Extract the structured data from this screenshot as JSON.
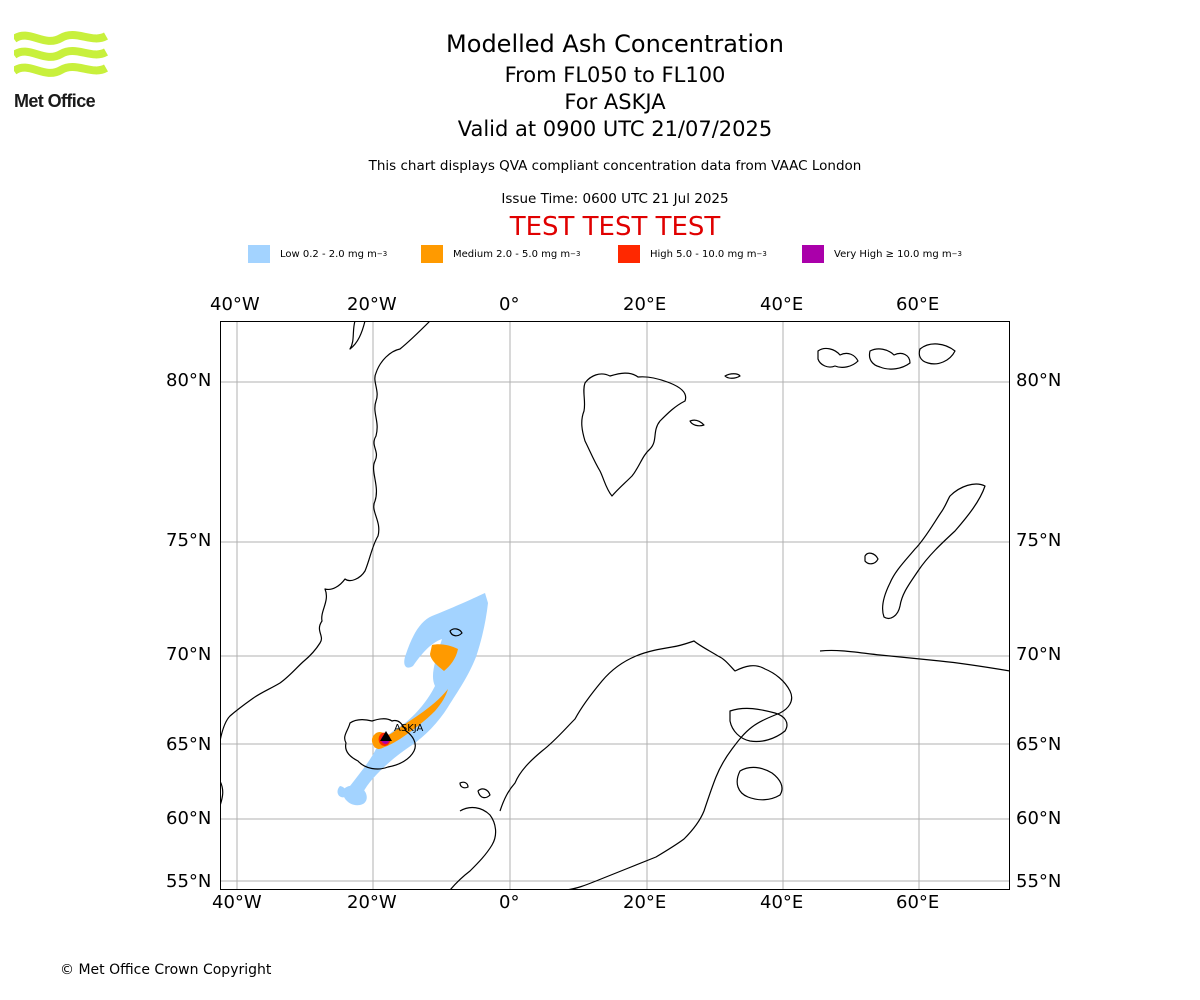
{
  "header": {
    "logo_text": "Met Office",
    "title": "Modelled Ash Concentration",
    "subtitle_lines": [
      "From FL050 to FL100",
      "For ASKJA",
      "Valid at 0900 UTC 21/07/2025"
    ],
    "note": "This chart displays QVA compliant concentration data from VAAC London",
    "issue_time": "Issue Time: 0600 UTC 21 Jul 2025",
    "test_banner": "TEST TEST TEST"
  },
  "legend": [
    {
      "label": "Low 0.2 - 2.0 mg m",
      "sup": "−3",
      "color": "#a3d3ff"
    },
    {
      "label": "Medium 2.0 - 5.0 mg m",
      "sup": "−3",
      "color": "#ff9a00"
    },
    {
      "label": "High 5.0 - 10.0 mg m",
      "sup": "−3",
      "color": "#ff2800"
    },
    {
      "label": "Very High  ≥  10.0 mg m",
      "sup": "−3",
      "color": "#aa00aa"
    }
  ],
  "map": {
    "longitude_labels": [
      "40°W",
      "20°W",
      "0°",
      "20°E",
      "40°E",
      "60°E"
    ],
    "latitude_labels": [
      "80°N",
      "75°N",
      "70°N",
      "65°N",
      "60°N",
      "55°N"
    ],
    "volcano_name": "ASKJA",
    "grid": true,
    "frame_color": "#000000",
    "grid_color": "#b0b0b0",
    "coast_color": "#000000"
  },
  "footer": {
    "copyright": "© Met Office Crown Copyright"
  }
}
